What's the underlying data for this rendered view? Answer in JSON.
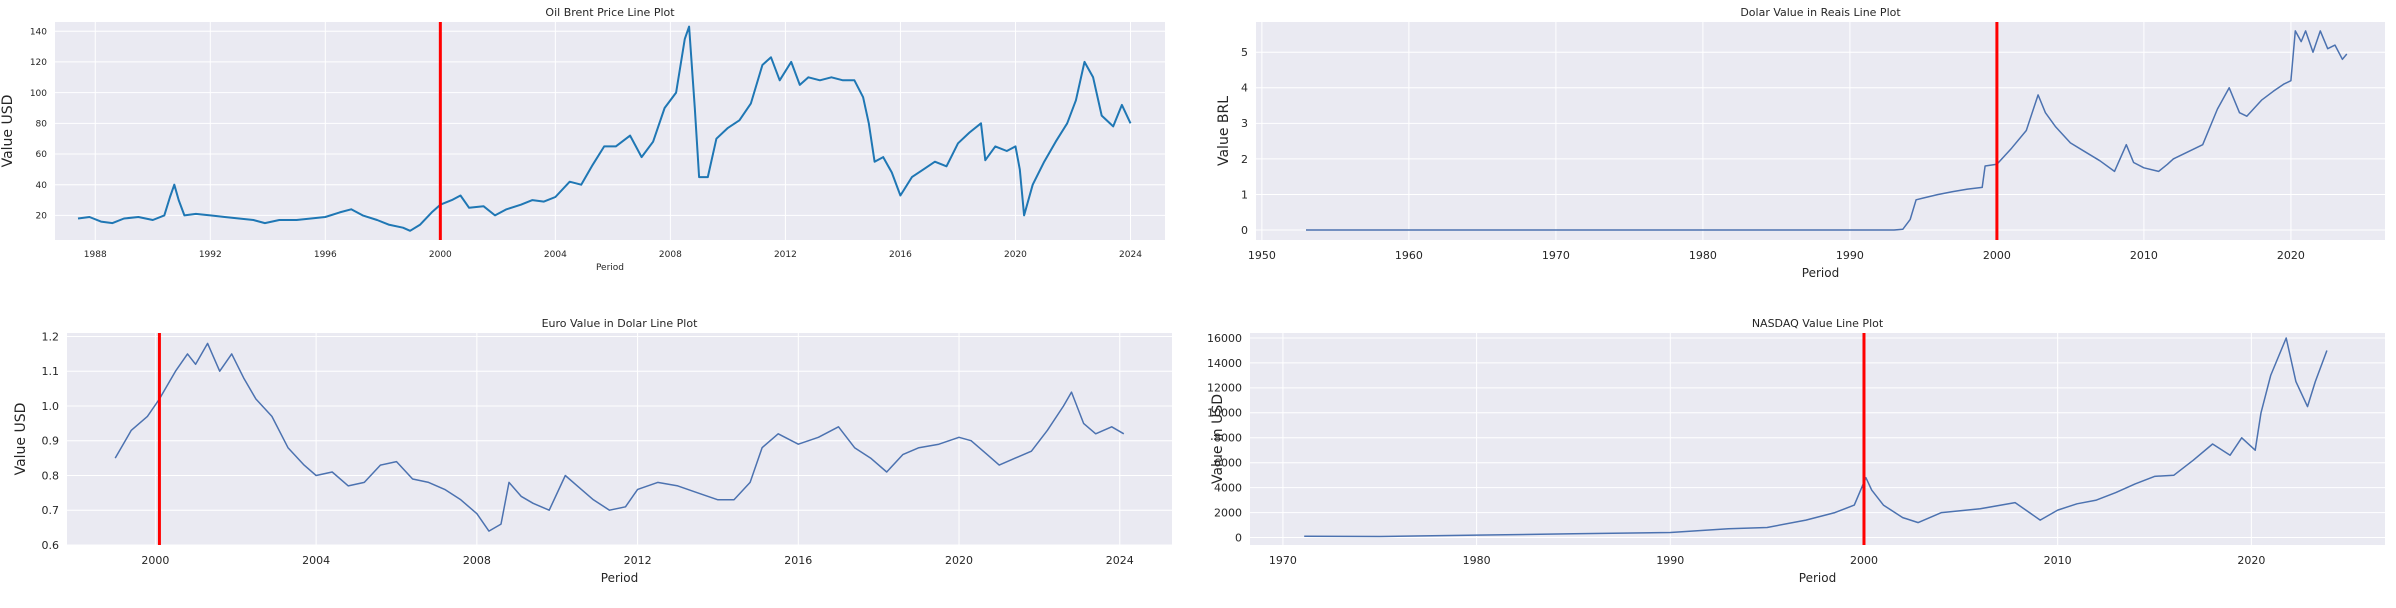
{
  "colors": {
    "panel_bg": "#eaeaf2",
    "grid": "#ffffff",
    "oil_line": "#1f77b4",
    "series_line": "#4c72b0",
    "marker_line": "#ff0000"
  },
  "chart_data": [
    {
      "type": "line",
      "title": "Oil Brent Price Line Plot",
      "xlabel": "Period",
      "ylabel": "Value USD",
      "x_ticks": [
        1988,
        1992,
        1996,
        2000,
        2004,
        2008,
        2012,
        2016,
        2020,
        2024
      ],
      "y_ticks": [
        20,
        40,
        60,
        80,
        100,
        120,
        140
      ],
      "xlim": [
        1986.6,
        2025.2
      ],
      "ylim": [
        4,
        146
      ],
      "grid": true,
      "vline_x": 2000.0,
      "series": [
        {
          "x": [
            1987.4,
            1987.8,
            1988.2,
            1988.6,
            1989.0,
            1989.5,
            1990.0,
            1990.4,
            1990.6,
            1990.75,
            1990.9,
            1991.1,
            1991.5,
            1992.0,
            1992.5,
            1993.0,
            1993.5,
            1993.9,
            1994.4,
            1995.0,
            1995.5,
            1996.0,
            1996.5,
            1996.9,
            1997.3,
            1997.8,
            1998.2,
            1998.7,
            1998.95,
            1999.3,
            1999.7,
            2000.0,
            2000.4,
            2000.7,
            2001.0,
            2001.5,
            2001.9,
            2002.3,
            2002.8,
            2003.2,
            2003.6,
            2004.0,
            2004.5,
            2004.9,
            2005.3,
            2005.7,
            2006.1,
            2006.6,
            2007.0,
            2007.4,
            2007.8,
            2008.2,
            2008.5,
            2008.65,
            2008.85,
            2009.0,
            2009.3,
            2009.6,
            2010.0,
            2010.4,
            2010.8,
            2011.2,
            2011.5,
            2011.8,
            2012.2,
            2012.5,
            2012.8,
            2013.2,
            2013.6,
            2014.0,
            2014.4,
            2014.7,
            2014.9,
            2015.1,
            2015.4,
            2015.7,
            2016.0,
            2016.4,
            2016.8,
            2017.2,
            2017.6,
            2018.0,
            2018.4,
            2018.8,
            2018.95,
            2019.3,
            2019.7,
            2020.0,
            2020.15,
            2020.3,
            2020.6,
            2021.0,
            2021.4,
            2021.8,
            2022.1,
            2022.4,
            2022.7,
            2023.0,
            2023.4,
            2023.7,
            2024.0
          ],
          "values": [
            18,
            19,
            16,
            15,
            18,
            19,
            17,
            20,
            32,
            40,
            30,
            20,
            21,
            20,
            19,
            18,
            17,
            15,
            17,
            17,
            18,
            19,
            22,
            24,
            20,
            17,
            14,
            12,
            10,
            14,
            22,
            27,
            30,
            33,
            25,
            26,
            20,
            24,
            27,
            30,
            29,
            32,
            42,
            40,
            53,
            65,
            65,
            72,
            58,
            68,
            90,
            100,
            135,
            143,
            90,
            45,
            45,
            70,
            77,
            82,
            93,
            118,
            123,
            108,
            120,
            105,
            110,
            108,
            110,
            108,
            108,
            97,
            80,
            55,
            58,
            48,
            33,
            45,
            50,
            55,
            52,
            67,
            74,
            80,
            56,
            65,
            62,
            65,
            50,
            20,
            40,
            55,
            68,
            80,
            95,
            120,
            110,
            85,
            78,
            92,
            80
          ]
        }
      ]
    },
    {
      "type": "line",
      "title": "Dolar Value in Reais Line Plot",
      "xlabel": "Period",
      "ylabel": "Value BRL",
      "x_ticks": [
        1950,
        1960,
        1970,
        1980,
        1990,
        2000,
        2010,
        2020
      ],
      "y_ticks": [
        0,
        1,
        2,
        3,
        4,
        5
      ],
      "xlim": [
        1949.6,
        2026.4
      ],
      "ylim": [
        -0.28,
        5.85
      ],
      "grid": true,
      "vline_x": 2000.0,
      "series": [
        {
          "x": [
            1953,
            1980,
            1993,
            1993.6,
            1994.1,
            1994.5,
            1995,
            1996,
            1997,
            1998,
            1999.0,
            1999.2,
            2000,
            2001,
            2002,
            2002.8,
            2003.3,
            2004,
            2005,
            2006,
            2007,
            2008,
            2008.8,
            2009.3,
            2010,
            2011,
            2011.6,
            2012,
            2013,
            2014,
            2015,
            2015.8,
            2016.5,
            2017,
            2018,
            2018.8,
            2019.5,
            2020.0,
            2020.3,
            2020.7,
            2021,
            2021.5,
            2022,
            2022.5,
            2023,
            2023.5,
            2023.8
          ],
          "values": [
            0,
            0,
            0,
            0.02,
            0.3,
            0.85,
            0.9,
            1.0,
            1.08,
            1.15,
            1.2,
            1.8,
            1.85,
            2.3,
            2.8,
            3.8,
            3.3,
            2.9,
            2.45,
            2.2,
            1.95,
            1.65,
            2.4,
            1.9,
            1.75,
            1.65,
            1.85,
            2.0,
            2.2,
            2.4,
            3.4,
            4.0,
            3.3,
            3.2,
            3.65,
            3.9,
            4.1,
            4.2,
            5.6,
            5.3,
            5.6,
            5.0,
            5.6,
            5.1,
            5.2,
            4.8,
            4.95
          ]
        }
      ]
    },
    {
      "type": "line",
      "title": "Euro Value in Dolar Line Plot",
      "xlabel": "Period",
      "ylabel": "Value USD",
      "x_ticks": [
        2000,
        2004,
        2008,
        2012,
        2016,
        2020,
        2024
      ],
      "y_ticks": [
        0.6,
        0.7,
        0.8,
        0.9,
        1.0,
        1.1,
        1.2
      ],
      "xlim": [
        1997.8,
        2025.3
      ],
      "ylim": [
        0.6,
        1.21
      ],
      "grid": true,
      "vline_x": 2000.1,
      "series": [
        {
          "x": [
            1999.0,
            1999.4,
            1999.8,
            2000.1,
            2000.5,
            2000.8,
            2001.0,
            2001.3,
            2001.6,
            2001.9,
            2002.2,
            2002.5,
            2002.9,
            2003.3,
            2003.7,
            2004.0,
            2004.4,
            2004.8,
            2005.2,
            2005.6,
            2006.0,
            2006.4,
            2006.8,
            2007.2,
            2007.6,
            2008.0,
            2008.3,
            2008.6,
            2008.8,
            2009.1,
            2009.4,
            2009.8,
            2010.2,
            2010.5,
            2010.9,
            2011.3,
            2011.7,
            2012.0,
            2012.5,
            2013.0,
            2013.5,
            2014.0,
            2014.4,
            2014.8,
            2015.1,
            2015.5,
            2016.0,
            2016.5,
            2017.0,
            2017.4,
            2017.8,
            2018.2,
            2018.6,
            2019.0,
            2019.5,
            2020.0,
            2020.3,
            2020.7,
            2021.0,
            2021.4,
            2021.8,
            2022.2,
            2022.6,
            2022.8,
            2023.1,
            2023.4,
            2023.8,
            2024.1
          ],
          "values": [
            0.85,
            0.93,
            0.97,
            1.02,
            1.1,
            1.15,
            1.12,
            1.18,
            1.1,
            1.15,
            1.08,
            1.02,
            0.97,
            0.88,
            0.83,
            0.8,
            0.81,
            0.77,
            0.78,
            0.83,
            0.84,
            0.79,
            0.78,
            0.76,
            0.73,
            0.69,
            0.64,
            0.66,
            0.78,
            0.74,
            0.72,
            0.7,
            0.8,
            0.77,
            0.73,
            0.7,
            0.71,
            0.76,
            0.78,
            0.77,
            0.75,
            0.73,
            0.73,
            0.78,
            0.88,
            0.92,
            0.89,
            0.91,
            0.94,
            0.88,
            0.85,
            0.81,
            0.86,
            0.88,
            0.89,
            0.91,
            0.9,
            0.86,
            0.83,
            0.85,
            0.87,
            0.93,
            1.0,
            1.04,
            0.95,
            0.92,
            0.94,
            0.92
          ]
        }
      ]
    },
    {
      "type": "line",
      "title": "NASDAQ Value Line Plot",
      "xlabel": "Period",
      "ylabel": "Value in USD",
      "x_ticks": [
        1970,
        1980,
        1990,
        2000,
        2010,
        2020
      ],
      "y_ticks": [
        0,
        2000,
        4000,
        6000,
        8000,
        10000,
        12000,
        14000,
        16000
      ],
      "xlim": [
        1968.3,
        2026.9
      ],
      "ylim": [
        -600,
        16400
      ],
      "grid": true,
      "vline_x": 2000.0,
      "series": [
        {
          "x": [
            1971.1,
            1975,
            1980,
            1985,
            1990,
            1993,
            1995,
            1997,
            1998.5,
            1999.5,
            2000.1,
            2000.4,
            2001,
            2002,
            2002.8,
            2004,
            2006,
            2007.8,
            2009.1,
            2010,
            2011,
            2012,
            2013,
            2014,
            2015,
            2016,
            2017,
            2018,
            2018.9,
            2019.5,
            2020.2,
            2020.5,
            2021,
            2021.8,
            2022.3,
            2022.9,
            2023.3,
            2023.9
          ],
          "values": [
            100,
            80,
            190,
            300,
            400,
            700,
            800,
            1400,
            2000,
            2600,
            4800,
            3800,
            2600,
            1600,
            1200,
            2000,
            2300,
            2800,
            1400,
            2200,
            2700,
            3000,
            3600,
            4300,
            4900,
            5000,
            6200,
            7500,
            6600,
            8000,
            7000,
            10000,
            13000,
            16000,
            12500,
            10500,
            12500,
            15000
          ]
        }
      ]
    }
  ]
}
